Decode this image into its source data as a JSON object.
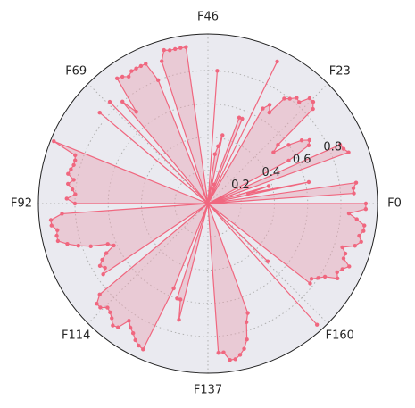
{
  "chart_data": {
    "type": "radar",
    "title": "",
    "angular_ticks": [
      "F0",
      "F23",
      "F46",
      "F69",
      "F92",
      "F114",
      "F137",
      "F160"
    ],
    "radial_ticks": [
      "0.2",
      "0.4",
      "0.6",
      "0.8"
    ],
    "radial_tick_values": [
      0.2,
      0.4,
      0.6,
      0.8
    ],
    "rlim": [
      0,
      1.02
    ],
    "grid": true,
    "colors": {
      "series": "#f0677f",
      "fill": "#e9a3b3",
      "background": "#eaeaf0",
      "grid": "#b0b0b0",
      "text": "#262626"
    },
    "series": [
      {
        "n_points": 180,
        "start_angle_deg": 0,
        "direction": "counterclockwise",
        "values": [
          0.95,
          0.0,
          0.88,
          0.88,
          0.9,
          0.0,
          0.62,
          0.25,
          0.38,
          0.0,
          0.9,
          0.88,
          0.87,
          0.0,
          0.55,
          0.7,
          0.72,
          0.68,
          0.6,
          0.5,
          0.55,
          0.85,
          0.88,
          0.88,
          0.82,
          0.83,
          0.8,
          0.78,
          0.66,
          0.7,
          0.66,
          0.0,
          0.95,
          0.0,
          0.55,
          0.55,
          0.12,
          0.0,
          0.0,
          0.42,
          0.35,
          0.3,
          0.0,
          0.8,
          0.0,
          0.0,
          0.0,
          0.0,
          0.0,
          0.95,
          0.95,
          0.95,
          0.95,
          0.96,
          0.9,
          0.0,
          0.8,
          0.92,
          0.92,
          0.92,
          0.92,
          0.9,
          0.92,
          0.93,
          0.7,
          0.8,
          0.0,
          0.85,
          0.0,
          0.0,
          0.85,
          0.0,
          0.0,
          0.0,
          0.0,
          0.0,
          0.0,
          0.0,
          0.0,
          1.0,
          0.85,
          0.84,
          0.84,
          0.85,
          0.86,
          0.82,
          0.85,
          0.82,
          0.8,
          0.85,
          0.8,
          0.0,
          0.88,
          0.95,
          0.95,
          0.92,
          0.93,
          0.93,
          0.88,
          0.82,
          0.75,
          0.65,
          0.62,
          0.68,
          0.72,
          0.75,
          0.73,
          0.76,
          0.0,
          0.0,
          0.85,
          0.9,
          0.9,
          0.87,
          0.88,
          0.9,
          0.93,
          0.92,
          0.85,
          0.88,
          0.9,
          0.93,
          0.95,
          0.96,
          0.55,
          0.0,
          0.6,
          0.6,
          0.72,
          0.0,
          0.0,
          0.0,
          0.0,
          0.0,
          0.0,
          0.0,
          0.0,
          0.9,
          0.9,
          0.95,
          0.95,
          0.93,
          0.9,
          0.85,
          0.75,
          0.7,
          0.0,
          0.0,
          0.0,
          0.0,
          0.0,
          0.0,
          0.0,
          0.0,
          0.0,
          0.0,
          0.98,
          0.0,
          0.5,
          0.0,
          0.0,
          0.78,
          0.77,
          0.8,
          0.83,
          0.9,
          0.88,
          0.9,
          0.93,
          0.88,
          0.88,
          0.85,
          0.92,
          0.95,
          0.93,
          0.95,
          0.95,
          0.9,
          0.85,
          0.95
        ]
      }
    ]
  }
}
